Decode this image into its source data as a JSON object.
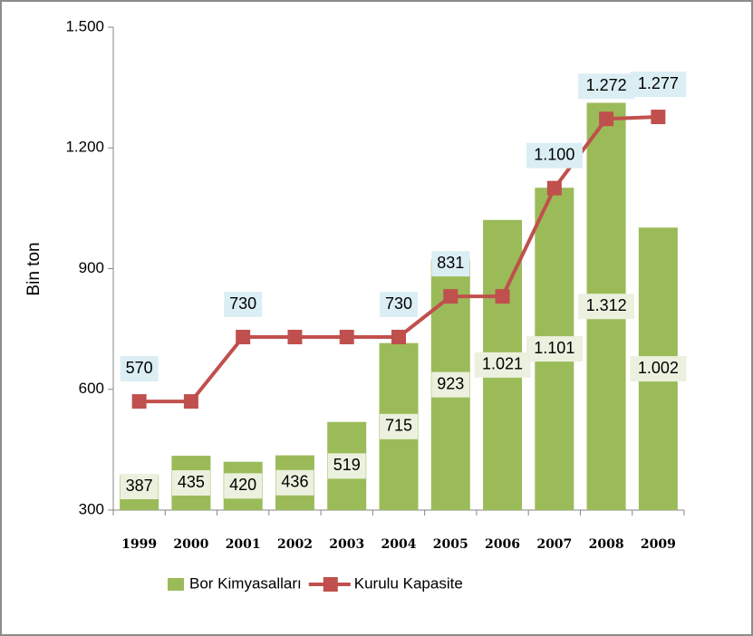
{
  "chart_data": {
    "type": "bar_line",
    "y_label": "Bin ton",
    "categories": [
      "1999",
      "2000",
      "2001",
      "2002",
      "2003",
      "2004",
      "2005",
      "2006",
      "2007",
      "2008",
      "2009"
    ],
    "series": [
      {
        "name": "Bor Kimyasalları",
        "type": "bar",
        "color": "#9bbb59",
        "values": [
          387,
          435,
          420,
          436,
          519,
          715,
          923,
          1021,
          1101,
          1312,
          1002
        ],
        "value_labels": [
          "387",
          "435",
          "420",
          "436",
          "519",
          "715",
          "923",
          "1.021",
          "1.101",
          "1.312",
          "1.002"
        ]
      },
      {
        "name": "Kurulu Kapasite",
        "type": "line",
        "color": "#c0504d",
        "values": [
          570,
          570,
          730,
          730,
          730,
          730,
          831,
          831,
          1100,
          1272,
          1277
        ],
        "value_labels": [
          "570",
          null,
          "730",
          null,
          null,
          "730",
          "831",
          null,
          "1.100",
          "1.272",
          "1.277"
        ]
      }
    ],
    "ylim": [
      300,
      1500
    ],
    "yticks": [
      300,
      600,
      900,
      {
        "value": 1200,
        "label": "1.200"
      },
      {
        "value": 1500,
        "label": "1.500"
      }
    ],
    "grid": false,
    "legend": "bottom"
  }
}
